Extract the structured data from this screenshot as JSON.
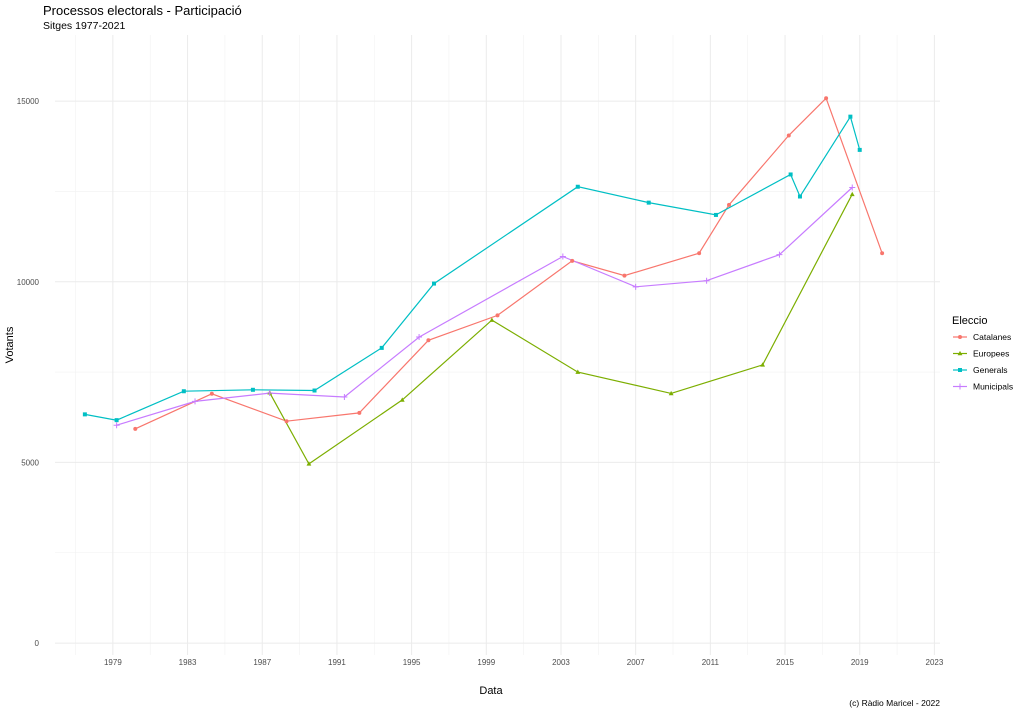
{
  "chart_data": {
    "type": "line",
    "title": "Processos electorals - Participació",
    "subtitle": "Sitges 1977-2021",
    "xlabel": "Data",
    "ylabel": "Votants",
    "caption": "(c) Ràdio Maricel - 2022",
    "xlim": [
      1975.9,
      2023.3
    ],
    "ylim": [
      -330,
      16830
    ],
    "x_ticks": [
      1979,
      1983,
      1987,
      1991,
      1995,
      1999,
      2003,
      2007,
      2011,
      2015,
      2019,
      2023
    ],
    "y_ticks": [
      0,
      5000,
      10000,
      15000
    ],
    "grid": true,
    "legend": {
      "title": "Eleccio",
      "position": "right"
    },
    "series": [
      {
        "name": "Catalanes",
        "color": "#F8766D",
        "marker": "circle",
        "x": [
          1980.2,
          1984.3,
          1988.3,
          1992.2,
          1995.9,
          1999.6,
          2003.6,
          2006.4,
          2010.4,
          2012.0,
          2015.2,
          2017.2,
          2020.2
        ],
        "y": [
          5930,
          6900,
          6140,
          6370,
          8380,
          9070,
          10580,
          10170,
          10790,
          12130,
          14050,
          15080,
          10790
        ]
      },
      {
        "name": "Europees",
        "color": "#7CAE00",
        "marker": "triangle",
        "x": [
          1987.4,
          1989.5,
          1994.5,
          1999.3,
          2003.9,
          2008.9,
          2013.8,
          2018.6
        ],
        "y": [
          6930,
          4960,
          6730,
          8940,
          7500,
          6910,
          7700,
          12420
        ]
      },
      {
        "name": "Generals",
        "color": "#00BFC4",
        "marker": "square",
        "x": [
          1977.5,
          1979.2,
          1982.8,
          1986.5,
          1989.8,
          1993.4,
          1996.2,
          2003.9,
          2007.7,
          2011.3,
          2015.3,
          2015.8,
          2018.5,
          2019.0
        ],
        "y": [
          6330,
          6170,
          6970,
          7010,
          6990,
          8170,
          9950,
          12630,
          12190,
          11850,
          12970,
          12360,
          14570,
          13650
        ]
      },
      {
        "name": "Municipals",
        "color": "#C77CFF",
        "marker": "plus",
        "x": [
          1979.2,
          1983.4,
          1987.4,
          1991.4,
          1995.4,
          2003.1,
          2007.0,
          2010.8,
          2014.7,
          2018.6
        ],
        "y": [
          6030,
          6690,
          6920,
          6810,
          8470,
          10700,
          9860,
          10030,
          10750,
          12610
        ]
      }
    ]
  }
}
